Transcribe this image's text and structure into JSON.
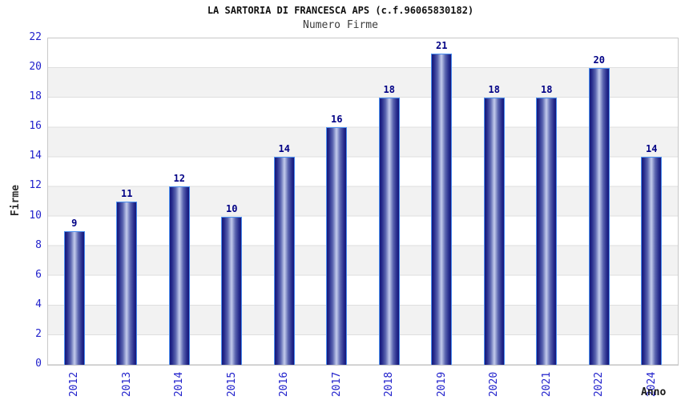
{
  "header": {
    "title": "LA SARTORIA DI FRANCESCA APS (c.f.96065830182)",
    "subtitle": "Numero Firme"
  },
  "chart_data": {
    "type": "bar",
    "title": "LA SARTORIA DI FRANCESCA APS (c.f.96065830182)",
    "subtitle": "Numero Firme",
    "categories": [
      "2012",
      "2013",
      "2014",
      "2015",
      "2016",
      "2017",
      "2018",
      "2019",
      "2020",
      "2021",
      "2022",
      "2024"
    ],
    "values": [
      9,
      11,
      12,
      10,
      14,
      16,
      18,
      21,
      18,
      18,
      20,
      14
    ],
    "xlabel": "Anno",
    "ylabel": "Firme",
    "ylim": [
      0,
      22
    ],
    "ytick_step": 2,
    "grid": "horizontal-bands-every-2-units",
    "legend": "none",
    "bar_labels_shown": true
  },
  "colors": {
    "tick_label_blue": "#2222cc",
    "value_label_navy": "#000085",
    "bar_border_blue": "#4a8ef0",
    "bar_edge_dark": "#15177a",
    "bar_mid": "#5a64af",
    "bar_center_light": "#b8c1e6",
    "band_gray": "#f2f2f2",
    "band_line": "#dedede",
    "plot_border": "#c8c8c8",
    "title_color": "#111111",
    "subtitle_color": "#3c3c3c"
  }
}
